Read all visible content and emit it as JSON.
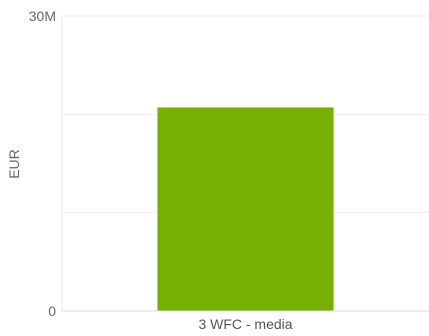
{
  "chart_data": {
    "type": "bar",
    "categories": [
      "3 WFC - media"
    ],
    "series": [
      {
        "values": [
          20700000
        ]
      }
    ],
    "ylabel": "EUR",
    "ylim": [
      0,
      30000000
    ],
    "yticks": [
      {
        "value": 0,
        "label": "0"
      },
      {
        "value": 30000000,
        "label": "30M"
      }
    ],
    "grid": true,
    "legend": "none",
    "colors": {
      "bar": "#76b000",
      "gridline": "#eeeeee",
      "axis_line": "#dddddd"
    }
  }
}
